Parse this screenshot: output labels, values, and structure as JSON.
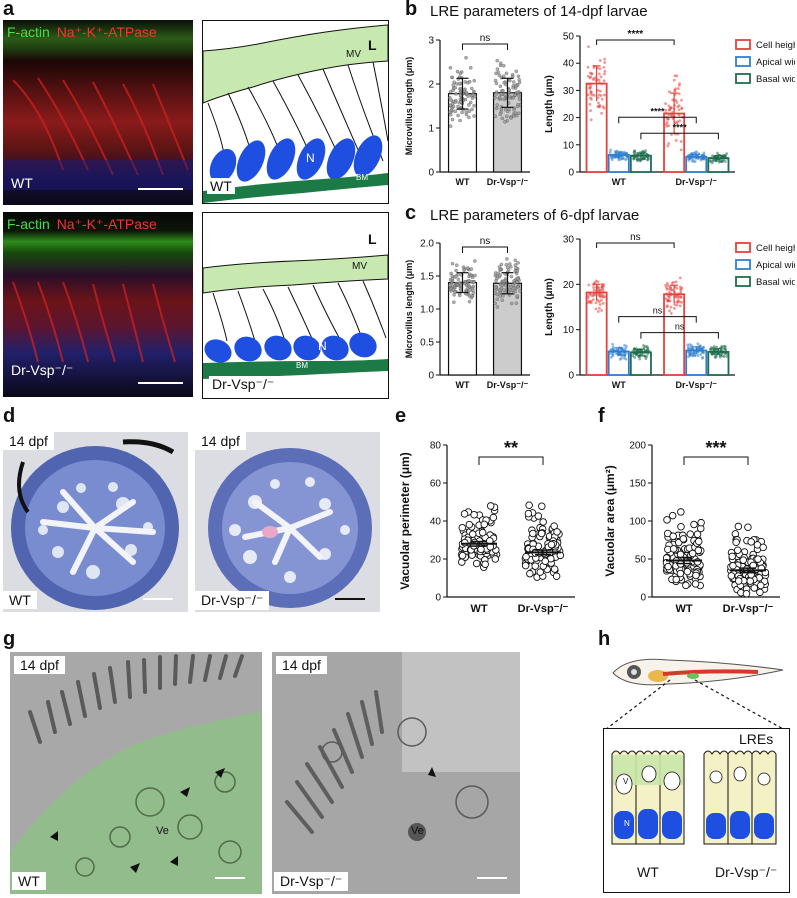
{
  "panels": {
    "a": {
      "label": "a",
      "top_image": {
        "stain1": "F-actin",
        "stain2": "Na⁺-K⁺-ATPase",
        "genotype": "WT"
      },
      "bottom_image": {
        "stain1": "F-actin",
        "stain2": "Na⁺-K⁺-ATPase",
        "genotype": "Dr-Vsp⁻/⁻"
      },
      "top_schematic": {
        "genotype": "WT",
        "L": "L",
        "MV": "MV",
        "N": "N",
        "BM": "BM"
      },
      "bottom_schematic": {
        "genotype": "Dr-Vsp⁻/⁻",
        "L": "L",
        "MV": "MV",
        "N": "N",
        "BM": "BM"
      }
    },
    "b": {
      "label": "b",
      "title": "LRE parameters of 14-dpf larvae"
    },
    "c": {
      "label": "c",
      "title": "LRE parameters of 6-dpf larvae"
    },
    "d": {
      "label": "d",
      "left": {
        "stage": "14 dpf",
        "genotype": "WT"
      },
      "right": {
        "stage": "14 dpf",
        "genotype": "Dr-Vsp⁻/⁻"
      }
    },
    "e": {
      "label": "e"
    },
    "f": {
      "label": "f"
    },
    "g": {
      "label": "g",
      "left": {
        "stage": "14 dpf",
        "genotype": "WT",
        "ve": "Ve"
      },
      "right": {
        "stage": "14 dpf",
        "genotype": "Dr-Vsp⁻/⁻",
        "ve": "Ve"
      }
    },
    "h": {
      "label": "h",
      "title": "LREs",
      "wt": "WT",
      "mut": "Dr-Vsp⁻/⁻",
      "v": "V",
      "n": "N"
    }
  },
  "colors": {
    "cell_height": "#e8423c",
    "apical_width": "#2f7fd1",
    "basal_width": "#1f6e4e",
    "bar_gray": "#cccccc",
    "nucleus": "#1f4fe0",
    "mv_green": "#b8e0a0",
    "bm_green": "#1b7a45"
  },
  "chart_data": [
    {
      "id": "b-left",
      "type": "bar",
      "title": "",
      "categories": [
        "WT",
        "Dr-Vsp⁻/⁻"
      ],
      "values": [
        1.78,
        1.8
      ],
      "errors": [
        0.35,
        0.33
      ],
      "ylabel": "Microvillus length (μm)",
      "ylim": [
        0,
        3
      ],
      "yticks": [
        0,
        1,
        2,
        3
      ],
      "bar_colors": [
        "#ffffff",
        "#cccccc"
      ],
      "annotation": "ns"
    },
    {
      "id": "b-right",
      "type": "bar",
      "title": "",
      "categories": [
        "WT",
        "Dr-Vsp⁻/⁻"
      ],
      "series": [
        {
          "name": "Cell height",
          "values": [
            32.5,
            21.5
          ],
          "errors": [
            6.5,
            7.5
          ],
          "color": "#e8423c"
        },
        {
          "name": "Apical width",
          "values": [
            6.3,
            5.6
          ],
          "errors": [
            1.0,
            0.9
          ],
          "color": "#2f7fd1"
        },
        {
          "name": "Basal width",
          "values": [
            6.0,
            5.1
          ],
          "errors": [
            1.0,
            0.9
          ],
          "color": "#1f6e4e"
        }
      ],
      "ylabel": "Length (μm)",
      "ylim": [
        0,
        50
      ],
      "yticks": [
        0,
        10,
        20,
        30,
        40,
        50
      ],
      "annotations": [
        "****",
        "****",
        "****"
      ],
      "legend": "right"
    },
    {
      "id": "c-left",
      "type": "bar",
      "title": "",
      "categories": [
        "WT",
        "Dr-Vsp⁻/⁻"
      ],
      "values": [
        1.4,
        1.39
      ],
      "errors": [
        0.15,
        0.16
      ],
      "ylabel": "Microvillus length (μm)",
      "ylim": [
        0,
        2
      ],
      "yticks": [
        0,
        0.5,
        1,
        1.5,
        2
      ],
      "ytick_labels": [
        "0",
        "0.5",
        "1.0",
        "1.5",
        "2.0"
      ],
      "bar_colors": [
        "#ffffff",
        "#cccccc"
      ],
      "annotation": "ns"
    },
    {
      "id": "c-right",
      "type": "bar",
      "title": "",
      "categories": [
        "WT",
        "Dr-Vsp⁻/⁻"
      ],
      "series": [
        {
          "name": "Cell height",
          "values": [
            18.2,
            17.8
          ],
          "errors": [
            1.8,
            2.0
          ],
          "color": "#e8423c"
        },
        {
          "name": "Apical width",
          "values": [
            5.2,
            5.4
          ],
          "errors": [
            0.8,
            0.8
          ],
          "color": "#2f7fd1"
        },
        {
          "name": "Basal width",
          "values": [
            5.0,
            5.1
          ],
          "errors": [
            0.7,
            0.7
          ],
          "color": "#1f6e4e"
        }
      ],
      "ylabel": "Length (μm)",
      "ylim": [
        0,
        30
      ],
      "yticks": [
        0,
        10,
        20,
        30
      ],
      "annotations": [
        "ns",
        "ns",
        "ns"
      ],
      "legend": "right"
    },
    {
      "id": "e",
      "type": "scatter",
      "title": "",
      "categories": [
        "WT",
        "Dr-Vsp⁻/⁻"
      ],
      "means": [
        28,
        23.5
      ],
      "sem": [
        1.2,
        1.2
      ],
      "ylabel": "Vacuolar perimeter (μm)",
      "ylim": [
        0,
        80
      ],
      "yticks": [
        0,
        20,
        40,
        60,
        80
      ],
      "annotation": "**",
      "n_points": [
        100,
        110
      ]
    },
    {
      "id": "f",
      "type": "scatter",
      "title": "",
      "categories": [
        "WT",
        "Dr-Vsp⁻/⁻"
      ],
      "means": [
        48,
        35
      ],
      "sem": [
        4,
        3
      ],
      "ylabel": "Vacuolar area (μm²)",
      "ylim": [
        0,
        200
      ],
      "yticks": [
        0,
        50,
        100,
        150,
        200
      ],
      "annotation": "***",
      "n_points": [
        100,
        110
      ]
    }
  ]
}
